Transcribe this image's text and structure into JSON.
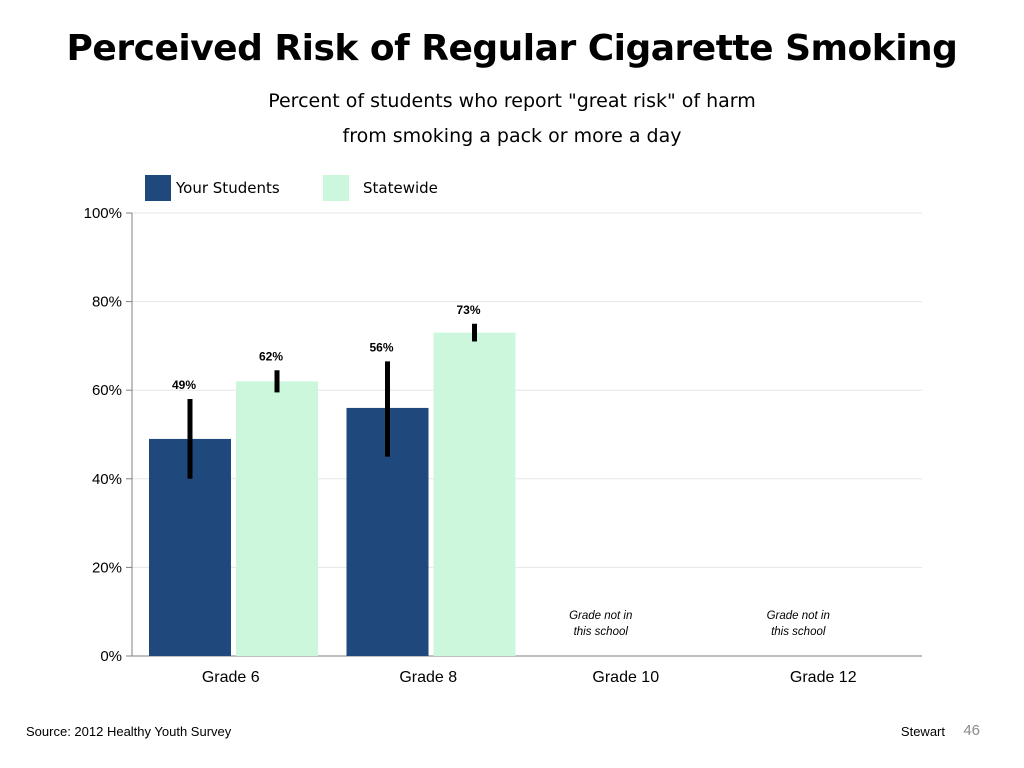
{
  "slide": {
    "title": "Perceived Risk of Regular Cigarette Smoking",
    "subtitle_line1": "Percent of students who report \"great risk\" of harm",
    "subtitle_line2": "from smoking a pack or more a day",
    "source": "Source: 2012 Healthy Youth Survey",
    "author": "Stewart",
    "page_number": "46"
  },
  "colors": {
    "your_students": "#1f497d",
    "statewide": "#ccf7dc",
    "error_bar": "#000000",
    "gridline": "#e6e6e6",
    "axis": "#808080"
  },
  "chart_data": {
    "type": "bar",
    "categories": [
      "Grade 6",
      "Grade 8",
      "Grade 10",
      "Grade 12"
    ],
    "series": [
      {
        "name": "Your Students",
        "values": [
          49,
          56,
          null,
          null
        ],
        "labels": [
          "49%",
          "56%",
          "",
          ""
        ],
        "error_low": [
          40,
          45,
          null,
          null
        ],
        "error_high": [
          58,
          66.5,
          null,
          null
        ]
      },
      {
        "name": "Statewide",
        "values": [
          62,
          73,
          null,
          null
        ],
        "labels": [
          "62%",
          "73%",
          "",
          ""
        ],
        "error_low": [
          59.5,
          71,
          null,
          null
        ],
        "error_high": [
          64.5,
          75,
          null,
          null
        ]
      }
    ],
    "yticks": [
      "0%",
      "20%",
      "40%",
      "60%",
      "80%",
      "100%"
    ],
    "ylim": [
      0,
      100
    ],
    "grid": true,
    "legend_position": "top-left",
    "notes": [
      {
        "category_index": 2,
        "line1": "Grade not in",
        "line2": "this school"
      },
      {
        "category_index": 3,
        "line1": "Grade not in",
        "line2": "this school"
      }
    ]
  }
}
